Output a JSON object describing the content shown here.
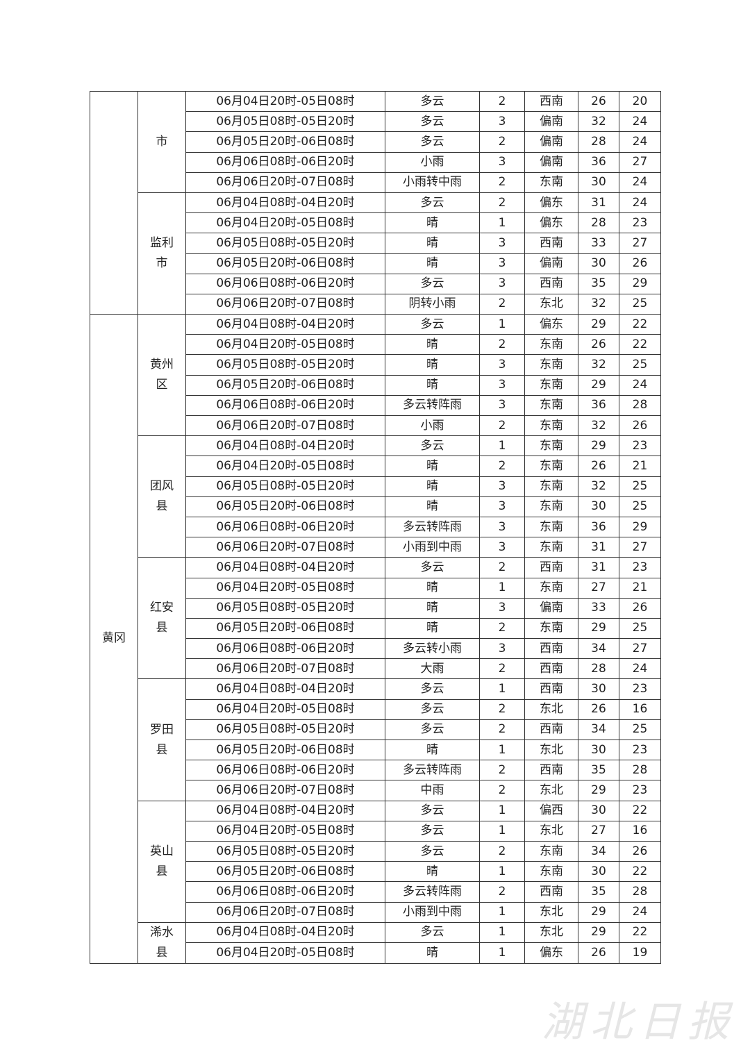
{
  "table": {
    "groups": [
      {
        "counties": [
          {
            "name": "市",
            "rows": [
              [
                "06月04日20时-05日08时",
                "多云",
                2,
                "西南",
                26,
                20
              ],
              [
                "06月05日08时-05日20时",
                "多云",
                3,
                "偏南",
                32,
                24
              ],
              [
                "06月05日20时-06日08时",
                "多云",
                2,
                "偏南",
                28,
                24
              ],
              [
                "06月06日08时-06日20时",
                "小雨",
                3,
                "偏南",
                36,
                27
              ],
              [
                "06月06日20时-07日08时",
                "小雨转中雨",
                2,
                "东南",
                30,
                24
              ]
            ]
          },
          {
            "name": "监利市",
            "rows": [
              [
                "06月04日08时-04日20时",
                "多云",
                2,
                "偏东",
                31,
                24
              ],
              [
                "06月04日20时-05日08时",
                "晴",
                1,
                "偏东",
                28,
                23
              ],
              [
                "06月05日08时-05日20时",
                "晴",
                3,
                "西南",
                33,
                27
              ],
              [
                "06月05日20时-06日08时",
                "晴",
                3,
                "偏南",
                30,
                26
              ],
              [
                "06月06日08时-06日20时",
                "多云",
                3,
                "西南",
                35,
                29
              ],
              [
                "06月06日20时-07日08时",
                "阴转小雨",
                2,
                "东北",
                32,
                25
              ]
            ]
          }
        ]
      },
      {
        "city": "黄冈",
        "counties": [
          {
            "name": "黄州区",
            "rows": [
              [
                "06月04日08时-04日20时",
                "多云",
                1,
                "偏东",
                29,
                22
              ],
              [
                "06月04日20时-05日08时",
                "晴",
                2,
                "东南",
                26,
                22
              ],
              [
                "06月05日08时-05日20时",
                "晴",
                3,
                "东南",
                32,
                25
              ],
              [
                "06月05日20时-06日08时",
                "晴",
                3,
                "东南",
                29,
                24
              ],
              [
                "06月06日08时-06日20时",
                "多云转阵雨",
                3,
                "东南",
                36,
                28
              ],
              [
                "06月06日20时-07日08时",
                "小雨",
                2,
                "东南",
                32,
                26
              ]
            ]
          },
          {
            "name": "团风县",
            "rows": [
              [
                "06月04日08时-04日20时",
                "多云",
                1,
                "东南",
                29,
                23
              ],
              [
                "06月04日20时-05日08时",
                "晴",
                2,
                "东南",
                26,
                21
              ],
              [
                "06月05日08时-05日20时",
                "晴",
                3,
                "东南",
                32,
                25
              ],
              [
                "06月05日20时-06日08时",
                "晴",
                3,
                "东南",
                30,
                25
              ],
              [
                "06月06日08时-06日20时",
                "多云转阵雨",
                3,
                "东南",
                36,
                29
              ],
              [
                "06月06日20时-07日08时",
                "小雨到中雨",
                3,
                "东南",
                31,
                27
              ]
            ]
          },
          {
            "name": "红安县",
            "rows": [
              [
                "06月04日08时-04日20时",
                "多云",
                2,
                "西南",
                31,
                23
              ],
              [
                "06月04日20时-05日08时",
                "晴",
                1,
                "东南",
                27,
                21
              ],
              [
                "06月05日08时-05日20时",
                "晴",
                3,
                "偏南",
                33,
                26
              ],
              [
                "06月05日20时-06日08时",
                "晴",
                2,
                "东南",
                29,
                25
              ],
              [
                "06月06日08时-06日20时",
                "多云转小雨",
                3,
                "西南",
                34,
                27
              ],
              [
                "06月06日20时-07日08时",
                "大雨",
                2,
                "西南",
                28,
                24
              ]
            ]
          },
          {
            "name": "罗田县",
            "rows": [
              [
                "06月04日08时-04日20时",
                "多云",
                1,
                "西南",
                30,
                23
              ],
              [
                "06月04日20时-05日08时",
                "多云",
                2,
                "东北",
                26,
                16
              ],
              [
                "06月05日08时-05日20时",
                "多云",
                2,
                "西南",
                34,
                25
              ],
              [
                "06月05日20时-06日08时",
                "晴",
                1,
                "东北",
                30,
                23
              ],
              [
                "06月06日08时-06日20时",
                "多云转阵雨",
                2,
                "西南",
                35,
                28
              ],
              [
                "06月06日20时-07日08时",
                "中雨",
                2,
                "东北",
                29,
                23
              ]
            ]
          },
          {
            "name": "英山县",
            "rows": [
              [
                "06月04日08时-04日20时",
                "多云",
                1,
                "偏西",
                30,
                22
              ],
              [
                "06月04日20时-05日08时",
                "多云",
                1,
                "东北",
                27,
                16
              ],
              [
                "06月05日08时-05日20时",
                "多云",
                2,
                "东南",
                34,
                26
              ],
              [
                "06月05日20时-06日08时",
                "晴",
                1,
                "东南",
                30,
                22
              ],
              [
                "06月06日08时-06日20时",
                "多云转阵雨",
                2,
                "西南",
                35,
                28
              ],
              [
                "06月06日20时-07日08时",
                "小雨到中雨",
                1,
                "东北",
                29,
                24
              ]
            ]
          },
          {
            "name": "浠水县",
            "rows": [
              [
                "06月04日08时-04日20时",
                "多云",
                1,
                "东北",
                29,
                22
              ],
              [
                "06月04日20时-05日08时",
                "晴",
                1,
                "偏东",
                26,
                19
              ]
            ]
          }
        ]
      }
    ]
  },
  "watermark": "湖北日报"
}
